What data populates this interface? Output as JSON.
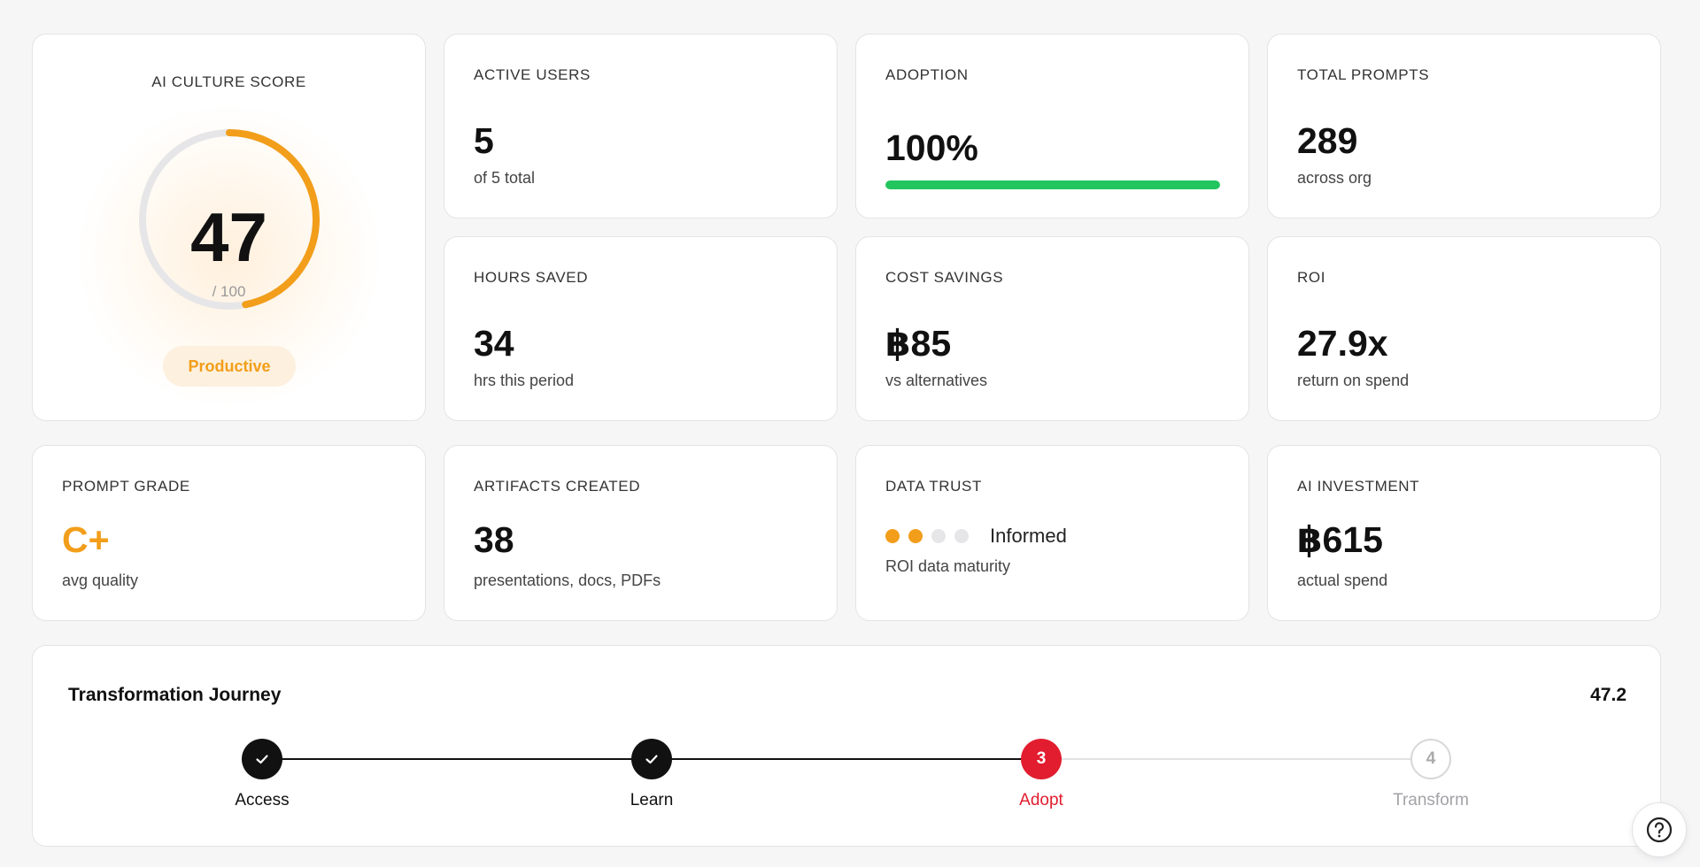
{
  "score": {
    "label": "AI CULTURE SCORE",
    "value": "47",
    "max": "/ 100",
    "fraction": 0.47,
    "badge": "Productive"
  },
  "metrics": {
    "active_users": {
      "label": "ACTIVE USERS",
      "value": "5",
      "sub": "of 5 total"
    },
    "adoption": {
      "label": "ADOPTION",
      "value": "100%",
      "progress": 1.0
    },
    "total_prompts": {
      "label": "TOTAL PROMPTS",
      "value": "289",
      "sub": "across org"
    },
    "hours_saved": {
      "label": "HOURS SAVED",
      "value": "34",
      "sub": "hrs this period"
    },
    "cost_savings": {
      "label": "COST SAVINGS",
      "value": "฿85",
      "sub": "vs alternatives"
    },
    "roi": {
      "label": "ROI",
      "value": "27.9x",
      "sub": "return on spend"
    },
    "prompt_grade": {
      "label": "PROMPT GRADE",
      "value": "C+",
      "sub": "avg quality"
    },
    "artifacts": {
      "label": "ARTIFACTS CREATED",
      "value": "38",
      "sub": "presentations, docs, PDFs"
    },
    "data_trust": {
      "label": "DATA TRUST",
      "level": 2,
      "of": 4,
      "word": "Informed",
      "sub": "ROI data maturity"
    },
    "investment": {
      "label": "AI INVESTMENT",
      "value": "฿615",
      "sub": "actual spend"
    }
  },
  "journey": {
    "title": "Transformation Journey",
    "score": "47.2",
    "steps": [
      {
        "label": "Access",
        "state": "done",
        "num": ""
      },
      {
        "label": "Learn",
        "state": "done",
        "num": ""
      },
      {
        "label": "Adopt",
        "state": "active",
        "num": "3"
      },
      {
        "label": "Transform",
        "state": "todo",
        "num": "4"
      }
    ]
  },
  "colors": {
    "accent": "#f29e1a",
    "success": "#22c55e",
    "active_step": "#e11d2f"
  },
  "help_icon": "question-circle-icon"
}
